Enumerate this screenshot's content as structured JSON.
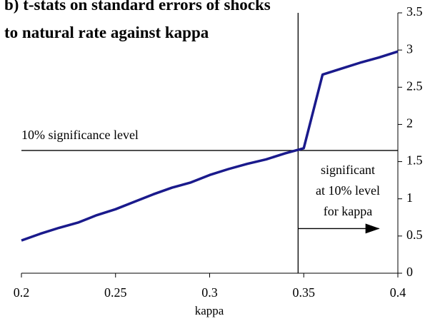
{
  "chart_data": {
    "type": "line",
    "title": [
      "b) t-stats on standard errors of shocks",
      "to natural rate against kappa"
    ],
    "x_label": "kappa",
    "x": [
      0.2,
      0.21,
      0.22,
      0.23,
      0.24,
      0.25,
      0.26,
      0.27,
      0.28,
      0.29,
      0.3,
      0.31,
      0.32,
      0.33,
      0.34,
      0.35,
      0.36,
      0.37,
      0.38,
      0.39,
      0.4
    ],
    "series": [
      {
        "color": "#1a1a8c",
        "values": [
          0.44,
          0.53,
          0.61,
          0.68,
          0.78,
          0.86,
          0.96,
          1.06,
          1.15,
          1.22,
          1.32,
          1.4,
          1.47,
          1.53,
          1.61,
          1.68,
          2.67,
          2.75,
          2.83,
          2.9,
          2.98
        ]
      }
    ],
    "xlim": [
      0.2,
      0.4
    ],
    "xticks": [
      0.2,
      0.25,
      0.3,
      0.35,
      0.4
    ],
    "ylim": [
      0,
      3.5
    ],
    "yticks": [
      0,
      0.5,
      1,
      1.5,
      2,
      2.5,
      3,
      3.5
    ],
    "y_axis_side": "right",
    "h_line": {
      "value": 1.65,
      "label": "10% significance level"
    },
    "v_line": 0.347,
    "annotation": {
      "lines": [
        "significant",
        "at 10% level",
        "for kappa"
      ],
      "arrow_y": 0.6,
      "arrow_x": [
        0.347,
        0.39
      ]
    }
  }
}
